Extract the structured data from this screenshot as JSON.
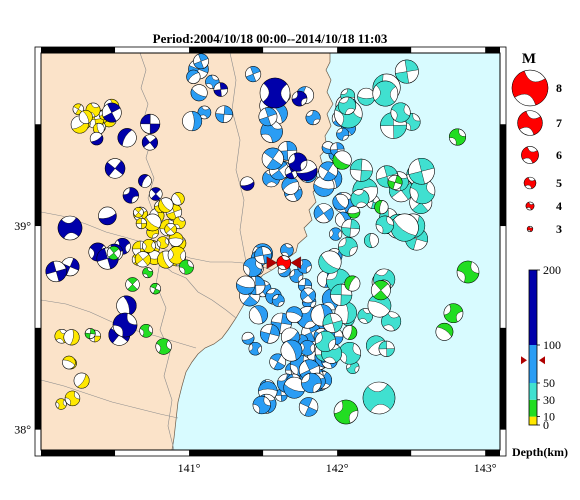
{
  "title": "Period:2004/10/18 00:00--2014/10/18 11:03",
  "map": {
    "lon_range": [
      140.0,
      143.1
    ],
    "lat_range": [
      37.9,
      39.85
    ],
    "lon_ticks": [
      {
        "v": 141,
        "label": "141°"
      },
      {
        "v": 142,
        "label": "142°"
      },
      {
        "v": 143,
        "label": "143°"
      }
    ],
    "lat_ticks": [
      {
        "v": 38,
        "label": "38°"
      },
      {
        "v": 39,
        "label": "39°"
      }
    ],
    "land_color": "#fbe3c9",
    "sea_color": "#d8fbff",
    "frame_color": "#000000"
  },
  "magnitude_legend": {
    "title": "M",
    "items": [
      {
        "label": "8",
        "m": 8
      },
      {
        "label": "7",
        "m": 7
      },
      {
        "label": "6",
        "m": 6
      },
      {
        "label": "5",
        "m": 5
      },
      {
        "label": "4",
        "m": 4
      },
      {
        "label": "3",
        "m": 3
      }
    ],
    "color": "#ff0000"
  },
  "depth_scale": {
    "label": "Depth(km)",
    "ticks": [
      {
        "v": 0,
        "label": "0"
      },
      {
        "v": 10,
        "label": "10"
      },
      {
        "v": 30,
        "label": "30"
      },
      {
        "v": 50,
        "label": "50"
      },
      {
        "v": 100,
        "label": "100"
      },
      {
        "v": 200,
        "label": "200"
      }
    ],
    "marker_depth": 80,
    "bands": [
      {
        "from": 0,
        "to": 10,
        "color": "#ffe800"
      },
      {
        "from": 10,
        "to": 30,
        "color": "#22dd22"
      },
      {
        "from": 30,
        "to": 50,
        "color": "#40e0d0"
      },
      {
        "from": 50,
        "to": 100,
        "color": "#2a9df4"
      },
      {
        "from": 100,
        "to": 200,
        "color": "#0000aa"
      }
    ]
  },
  "mainshock": {
    "lon": 141.64,
    "lat": 38.82,
    "color": "#ff0000",
    "star_color": "#b00000"
  }
}
